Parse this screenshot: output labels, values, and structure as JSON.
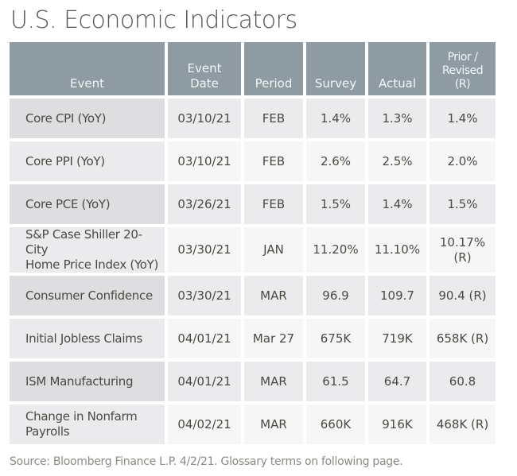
{
  "title": "U.S. Economic Indicators",
  "table": {
    "headers": {
      "event": "Event",
      "event_date_line1": "Event",
      "event_date_line2": "Date",
      "period": "Period",
      "survey": "Survey",
      "actual": "Actual",
      "prior_line1": "Prior /",
      "prior_line2": "Revised",
      "prior_line3": "(R)"
    },
    "rows": [
      {
        "event": "Core CPI (YoY)",
        "event2": "",
        "date": "03/10/21",
        "period": "FEB",
        "survey": "1.4%",
        "actual": "1.3%",
        "prior": "1.4%",
        "prior2": ""
      },
      {
        "event": "Core PPI (YoY)",
        "event2": "",
        "date": "03/10/21",
        "period": "FEB",
        "survey": "2.6%",
        "actual": "2.5%",
        "prior": "2.0%",
        "prior2": ""
      },
      {
        "event": "Core PCE (YoY)",
        "event2": "",
        "date": "03/26/21",
        "period": "FEB",
        "survey": "1.5%",
        "actual": "1.4%",
        "prior": "1.5%",
        "prior2": ""
      },
      {
        "event": "S&P Case Shiller 20-City",
        "event2": "Home Price Index (YoY)",
        "date": "03/30/21",
        "period": "JAN",
        "survey": "11.20%",
        "actual": "11.10%",
        "prior": "10.17%",
        "prior2": "(R)"
      },
      {
        "event": "Consumer Confidence",
        "event2": "",
        "date": "03/30/21",
        "period": "MAR",
        "survey": "96.9",
        "actual": "109.7",
        "prior": "90.4 (R)",
        "prior2": ""
      },
      {
        "event": "Initial Jobless Claims",
        "event2": "",
        "date": "04/01/21",
        "period": "Mar 27",
        "survey": "675K",
        "actual": "719K",
        "prior": "658K (R)",
        "prior2": ""
      },
      {
        "event": "ISM Manufacturing",
        "event2": "",
        "date": "04/01/21",
        "period": "MAR",
        "survey": "61.5",
        "actual": "64.7",
        "prior": "60.8",
        "prior2": ""
      },
      {
        "event": "Change in Nonfarm",
        "event2": "Payrolls",
        "date": "04/02/21",
        "period": "MAR",
        "survey": "660K",
        "actual": "916K",
        "prior": "468K (R)",
        "prior2": ""
      }
    ]
  },
  "source": "Source: Bloomberg Finance L.P. 4/2/21. Glossary terms on following page.",
  "colors": {
    "header_bg": "#8e9ba3",
    "row_dark": "#ebebed",
    "row_light": "#f6f6f7"
  }
}
